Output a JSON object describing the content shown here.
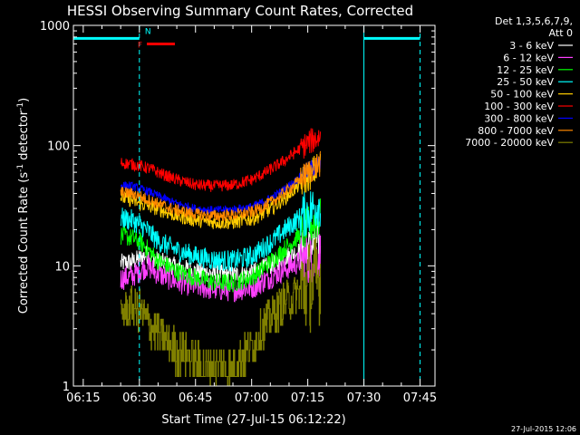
{
  "chart_data": {
    "type": "line",
    "title": "HESSI Observing Summary Count Rates, Corrected",
    "xlabel": "Start Time (27-Jul-15 06:12:22)",
    "ylabel_main": "Corrected Count Rate (s",
    "ylabel_sup1": "-1",
    "ylabel_mid": " detector",
    "ylabel_sup2": "-1",
    "ylabel_end": ")",
    "yscale": "log",
    "ylim": [
      1,
      1000
    ],
    "xlim_min": [
      12.37,
      80.5
    ],
    "x_ticks": [
      {
        "label": "06:15",
        "v": 15
      },
      {
        "label": "06:30",
        "v": 30
      },
      {
        "label": "06:45",
        "v": 45
      },
      {
        "label": "07:00",
        "v": 60
      },
      {
        "label": "07:15",
        "v": 75
      },
      {
        "label": "07:30",
        "v": 90
      },
      {
        "label": "07:45",
        "v": 105
      }
    ],
    "y_ticks": [
      {
        "label": "1",
        "v": 1
      },
      {
        "label": "10",
        "v": 10
      },
      {
        "label": "100",
        "v": 100
      },
      {
        "label": "1000",
        "v": 1000
      }
    ],
    "legend": {
      "header1": "Det 1,3,5,6,7,9,",
      "header2": "Att 0",
      "placement": "top-right-outside"
    },
    "series": [
      {
        "name": "3 - 6 keV",
        "color": "#ffffff",
        "points": [
          [
            25,
            10.5
          ],
          [
            28,
            10.8
          ],
          [
            30,
            11.5
          ],
          [
            32,
            12.5
          ],
          [
            35,
            11
          ],
          [
            40,
            9.8
          ],
          [
            45,
            9
          ],
          [
            50,
            8.6
          ],
          [
            55,
            8.4
          ],
          [
            60,
            8.7
          ],
          [
            63,
            9.5
          ],
          [
            66,
            10.5
          ],
          [
            69,
            11.8
          ],
          [
            72,
            13
          ],
          [
            75,
            14
          ],
          [
            78,
            15
          ]
        ]
      },
      {
        "name": "6 - 12 keV",
        "color": "#ff40ff",
        "points": [
          [
            25,
            7.8
          ],
          [
            28,
            8.2
          ],
          [
            30,
            9
          ],
          [
            32,
            10
          ],
          [
            35,
            8.6
          ],
          [
            40,
            7.4
          ],
          [
            45,
            6.8
          ],
          [
            50,
            6.4
          ],
          [
            55,
            6.3
          ],
          [
            60,
            6.6
          ],
          [
            63,
            7.4
          ],
          [
            66,
            8.4
          ],
          [
            69,
            9.4
          ],
          [
            72,
            10.5
          ],
          [
            75,
            11.5
          ],
          [
            78,
            12.5
          ]
        ]
      },
      {
        "name": "12 - 25 keV",
        "color": "#00ff00",
        "points": [
          [
            25,
            18
          ],
          [
            28,
            17
          ],
          [
            30,
            16
          ],
          [
            32,
            14
          ],
          [
            35,
            11
          ],
          [
            40,
            9
          ],
          [
            45,
            8
          ],
          [
            50,
            7.3
          ],
          [
            55,
            7.2
          ],
          [
            60,
            8
          ],
          [
            63,
            9.5
          ],
          [
            66,
            11.5
          ],
          [
            69,
            14
          ],
          [
            72,
            17
          ],
          [
            75,
            21
          ],
          [
            78,
            25
          ]
        ]
      },
      {
        "name": "25 - 50 keV",
        "color": "#00ffff",
        "points": [
          [
            25,
            25
          ],
          [
            28,
            24
          ],
          [
            30,
            22
          ],
          [
            32,
            20
          ],
          [
            35,
            16
          ],
          [
            40,
            13.5
          ],
          [
            45,
            12
          ],
          [
            50,
            11.2
          ],
          [
            55,
            11
          ],
          [
            60,
            12
          ],
          [
            63,
            14
          ],
          [
            66,
            16.5
          ],
          [
            69,
            20
          ],
          [
            72,
            24
          ],
          [
            75,
            28
          ],
          [
            78,
            33
          ]
        ]
      },
      {
        "name": "50 - 100 keV",
        "color": "#ffcc00",
        "points": [
          [
            25,
            37
          ],
          [
            28,
            35
          ],
          [
            30,
            33
          ],
          [
            33,
            31
          ],
          [
            36,
            29
          ],
          [
            40,
            26
          ],
          [
            45,
            24
          ],
          [
            50,
            23
          ],
          [
            55,
            23
          ],
          [
            60,
            24.5
          ],
          [
            63,
            27
          ],
          [
            66,
            31
          ],
          [
            69,
            37
          ],
          [
            72,
            45
          ],
          [
            75,
            55
          ],
          [
            78,
            68
          ]
        ]
      },
      {
        "name": "100 - 300 keV",
        "color": "#ff0000",
        "points": [
          [
            25,
            72
          ],
          [
            28,
            70
          ],
          [
            30,
            68
          ],
          [
            33,
            64
          ],
          [
            36,
            58
          ],
          [
            40,
            52
          ],
          [
            45,
            47
          ],
          [
            50,
            46
          ],
          [
            55,
            47
          ],
          [
            60,
            52
          ],
          [
            63,
            58
          ],
          [
            66,
            66
          ],
          [
            69,
            76
          ],
          [
            72,
            90
          ],
          [
            75,
            105
          ],
          [
            78,
            118
          ]
        ]
      },
      {
        "name": "300 - 800 keV",
        "color": "#0000ff",
        "points": [
          [
            25,
            47
          ],
          [
            28,
            46
          ],
          [
            30,
            44
          ],
          [
            33,
            41
          ],
          [
            36,
            37
          ],
          [
            40,
            33
          ],
          [
            45,
            30
          ],
          [
            50,
            29
          ],
          [
            55,
            29.5
          ],
          [
            60,
            31
          ],
          [
            63,
            34
          ],
          [
            66,
            38
          ],
          [
            69,
            44
          ],
          [
            72,
            52
          ],
          [
            75,
            62
          ],
          [
            78,
            70
          ]
        ]
      },
      {
        "name": "800 - 7000 keV",
        "color": "#ff8800",
        "points": [
          [
            25,
            41
          ],
          [
            28,
            40
          ],
          [
            30,
            38
          ],
          [
            33,
            35
          ],
          [
            36,
            32
          ],
          [
            40,
            29
          ],
          [
            45,
            27
          ],
          [
            50,
            26
          ],
          [
            55,
            26.5
          ],
          [
            60,
            28
          ],
          [
            63,
            31
          ],
          [
            66,
            35
          ],
          [
            69,
            41
          ],
          [
            72,
            49
          ],
          [
            75,
            60
          ],
          [
            78,
            70
          ]
        ]
      },
      {
        "name": "7000 - 20000 keV",
        "color": "#808000",
        "points": [
          [
            25,
            4
          ],
          [
            28,
            4.6
          ],
          [
            30,
            4.2
          ],
          [
            33,
            3.2
          ],
          [
            36,
            2.5
          ],
          [
            40,
            2
          ],
          [
            45,
            1.6
          ],
          [
            50,
            1.4
          ],
          [
            55,
            1.4
          ],
          [
            60,
            2.2
          ],
          [
            63,
            3
          ],
          [
            66,
            4
          ],
          [
            69,
            5
          ],
          [
            72,
            5.8
          ],
          [
            75,
            6.8
          ],
          [
            78,
            7.5
          ]
        ]
      }
    ],
    "flag_bar": {
      "color": "#00ffff",
      "value": 780,
      "segments": [
        [
          12.37,
          30
        ],
        [
          90,
          105
        ]
      ]
    },
    "flare_bar": {
      "label": "F",
      "color": "#ff0000",
      "x0": 32,
      "x1": 39.5,
      "value": 700
    },
    "night_label": {
      "label": "N",
      "color": "#00ffff",
      "x": 31,
      "value": 820
    },
    "vlines": [
      {
        "v": 12.37,
        "style": "solid",
        "color": "#00ffff"
      },
      {
        "v": 30,
        "style": "dashed",
        "color": "#00ffff"
      },
      {
        "v": 90,
        "style": "solid",
        "color": "#00ffff"
      },
      {
        "v": 105,
        "style": "dashed",
        "color": "#00ffff"
      }
    ],
    "data_xrange": [
      25,
      78.5
    ]
  },
  "footer": {
    "timestamp": "27-Jul-2015 12:06"
  }
}
